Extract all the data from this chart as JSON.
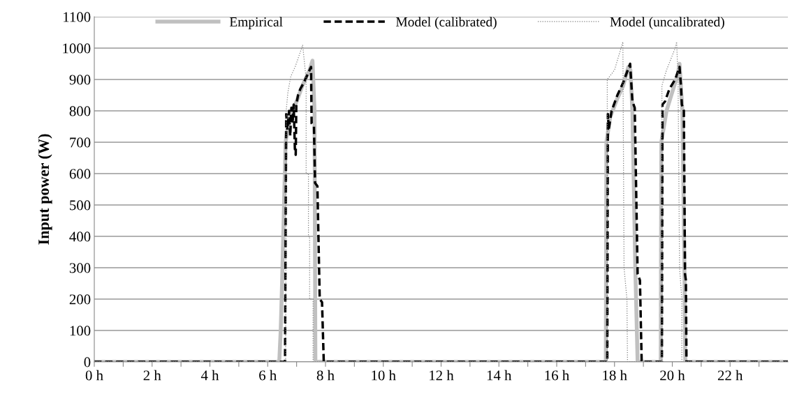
{
  "chart_data": {
    "type": "line",
    "ylabel": "Input power (W)",
    "xlim": [
      0,
      24
    ],
    "ylim": [
      0,
      1100
    ],
    "xticks": [
      {
        "value": 0,
        "label": "0 h"
      },
      {
        "value": 1,
        "label": null
      },
      {
        "value": 2,
        "label": "2 h"
      },
      {
        "value": 3,
        "label": null
      },
      {
        "value": 4,
        "label": "4 h"
      },
      {
        "value": 5,
        "label": null
      },
      {
        "value": 6,
        "label": "6 h"
      },
      {
        "value": 7,
        "label": null
      },
      {
        "value": 8,
        "label": "8 h"
      },
      {
        "value": 9,
        "label": null
      },
      {
        "value": 10,
        "label": "10 h"
      },
      {
        "value": 11,
        "label": null
      },
      {
        "value": 12,
        "label": "12 h"
      },
      {
        "value": 13,
        "label": null
      },
      {
        "value": 14,
        "label": "14 h"
      },
      {
        "value": 15,
        "label": null
      },
      {
        "value": 16,
        "label": "16 h"
      },
      {
        "value": 17,
        "label": null
      },
      {
        "value": 18,
        "label": "18 h"
      },
      {
        "value": 19,
        "label": null
      },
      {
        "value": 20,
        "label": "20 h"
      },
      {
        "value": 21,
        "label": null
      },
      {
        "value": 22,
        "label": "22 h"
      },
      {
        "value": 23,
        "label": null
      }
    ],
    "yticks": [
      0,
      100,
      200,
      300,
      400,
      500,
      600,
      700,
      800,
      900,
      1000,
      1100
    ],
    "grid": "y",
    "legend": "top",
    "marker": "none",
    "series": [
      {
        "name": "Empirical",
        "color": "#c0c0c0",
        "line_style": "solid",
        "x": [
          0,
          6.4,
          6.45,
          6.5,
          6.62,
          6.75,
          7.0,
          7.2,
          7.45,
          7.55,
          7.62,
          7.65,
          17.7,
          17.72,
          17.85,
          18.1,
          18.3,
          18.48,
          18.55,
          18.62,
          18.72,
          18.8,
          19.6,
          19.62,
          19.8,
          20.0,
          20.2,
          20.25,
          20.35,
          20.42,
          20.45,
          24
        ],
        "values": [
          0,
          0,
          100,
          260,
          700,
          780,
          830,
          880,
          930,
          960,
          800,
          0,
          0,
          700,
          780,
          840,
          880,
          940,
          930,
          800,
          300,
          0,
          0,
          700,
          800,
          860,
          920,
          950,
          800,
          300,
          0,
          0
        ]
      },
      {
        "name": "Model (calibrated)",
        "color": "#000000",
        "line_style": "dashed",
        "x": [
          0,
          6.6,
          6.64,
          6.68,
          6.74,
          6.78,
          6.82,
          6.86,
          6.9,
          6.94,
          6.97,
          6.99,
          7.05,
          7.13,
          7.25,
          7.4,
          7.5,
          7.52,
          7.6,
          7.64,
          7.72,
          7.8,
          7.88,
          7.94,
          17.75,
          17.77,
          17.8,
          17.9,
          18.1,
          18.3,
          18.54,
          18.62,
          18.7,
          18.8,
          18.88,
          18.94,
          19.64,
          19.66,
          19.75,
          19.9,
          20.1,
          20.25,
          20.3,
          20.33,
          20.4,
          20.44,
          20.47,
          20.49,
          24
        ],
        "values": [
          0,
          0,
          790,
          740,
          800,
          720,
          810,
          760,
          820,
          680,
          660,
          820,
          850,
          870,
          890,
          920,
          940,
          760,
          750,
          570,
          560,
          200,
          190,
          0,
          0,
          790,
          740,
          800,
          850,
          890,
          950,
          830,
          810,
          280,
          260,
          0,
          0,
          820,
          830,
          870,
          900,
          940,
          880,
          820,
          800,
          280,
          260,
          0,
          0
        ]
      },
      {
        "name": "Model (uncalibrated)",
        "color": "#808080",
        "line_style": "dotted",
        "x": [
          0,
          6.62,
          6.64,
          6.7,
          6.8,
          6.95,
          7.1,
          7.21,
          7.33,
          7.33,
          7.41,
          7.41,
          7.45,
          7.45,
          7.57,
          7.57,
          17.75,
          17.75,
          18.0,
          18.29,
          18.33,
          18.43,
          18.45,
          19.64,
          19.64,
          19.8,
          20.1,
          20.15,
          20.2,
          20.25,
          20.33,
          20.33,
          24
        ],
        "values": [
          0,
          0,
          800,
          860,
          910,
          940,
          980,
          1010,
          900,
          600,
          600,
          400,
          400,
          200,
          200,
          0,
          0,
          900,
          930,
          1020,
          300,
          200,
          0,
          0,
          880,
          930,
          1000,
          1020,
          900,
          300,
          200,
          0,
          0
        ]
      }
    ]
  }
}
